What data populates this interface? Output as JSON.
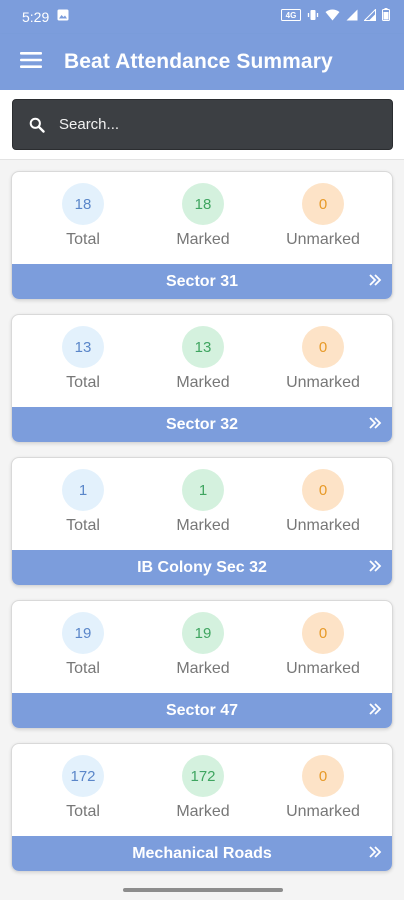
{
  "status_bar": {
    "time": "5:29",
    "icons": [
      "image-icon",
      "volte-icon",
      "vibrate-icon",
      "wifi-icon",
      "signal-icon",
      "signal-icon",
      "battery-icon"
    ]
  },
  "app_bar": {
    "title": "Beat Attendance Summary",
    "menu_icon": "menu-icon"
  },
  "search": {
    "placeholder": "Search...",
    "value": ""
  },
  "cards": [
    {
      "total": "18",
      "marked": "18",
      "unmarked": "0",
      "total_label": "Total",
      "marked_label": "Marked",
      "unmarked_label": "Unmarked",
      "name": "Sector 31"
    },
    {
      "total": "13",
      "marked": "13",
      "unmarked": "0",
      "total_label": "Total",
      "marked_label": "Marked",
      "unmarked_label": "Unmarked",
      "name": "Sector 32"
    },
    {
      "total": "1",
      "marked": "1",
      "unmarked": "0",
      "total_label": "Total",
      "marked_label": "Marked",
      "unmarked_label": "Unmarked",
      "name": "IB Colony Sec 32"
    },
    {
      "total": "19",
      "marked": "19",
      "unmarked": "0",
      "total_label": "Total",
      "marked_label": "Marked",
      "unmarked_label": "Unmarked",
      "name": "Sector 47"
    },
    {
      "total": "172",
      "marked": "172",
      "unmarked": "0",
      "total_label": "Total",
      "marked_label": "Marked",
      "unmarked_label": "Unmarked",
      "name": "Mechanical Roads"
    }
  ],
  "colors": {
    "primary": "#7c9ddc",
    "total_circle": "#e3f1fc",
    "marked_circle": "#d4f1de",
    "unmarked_circle": "#fde3c7"
  }
}
